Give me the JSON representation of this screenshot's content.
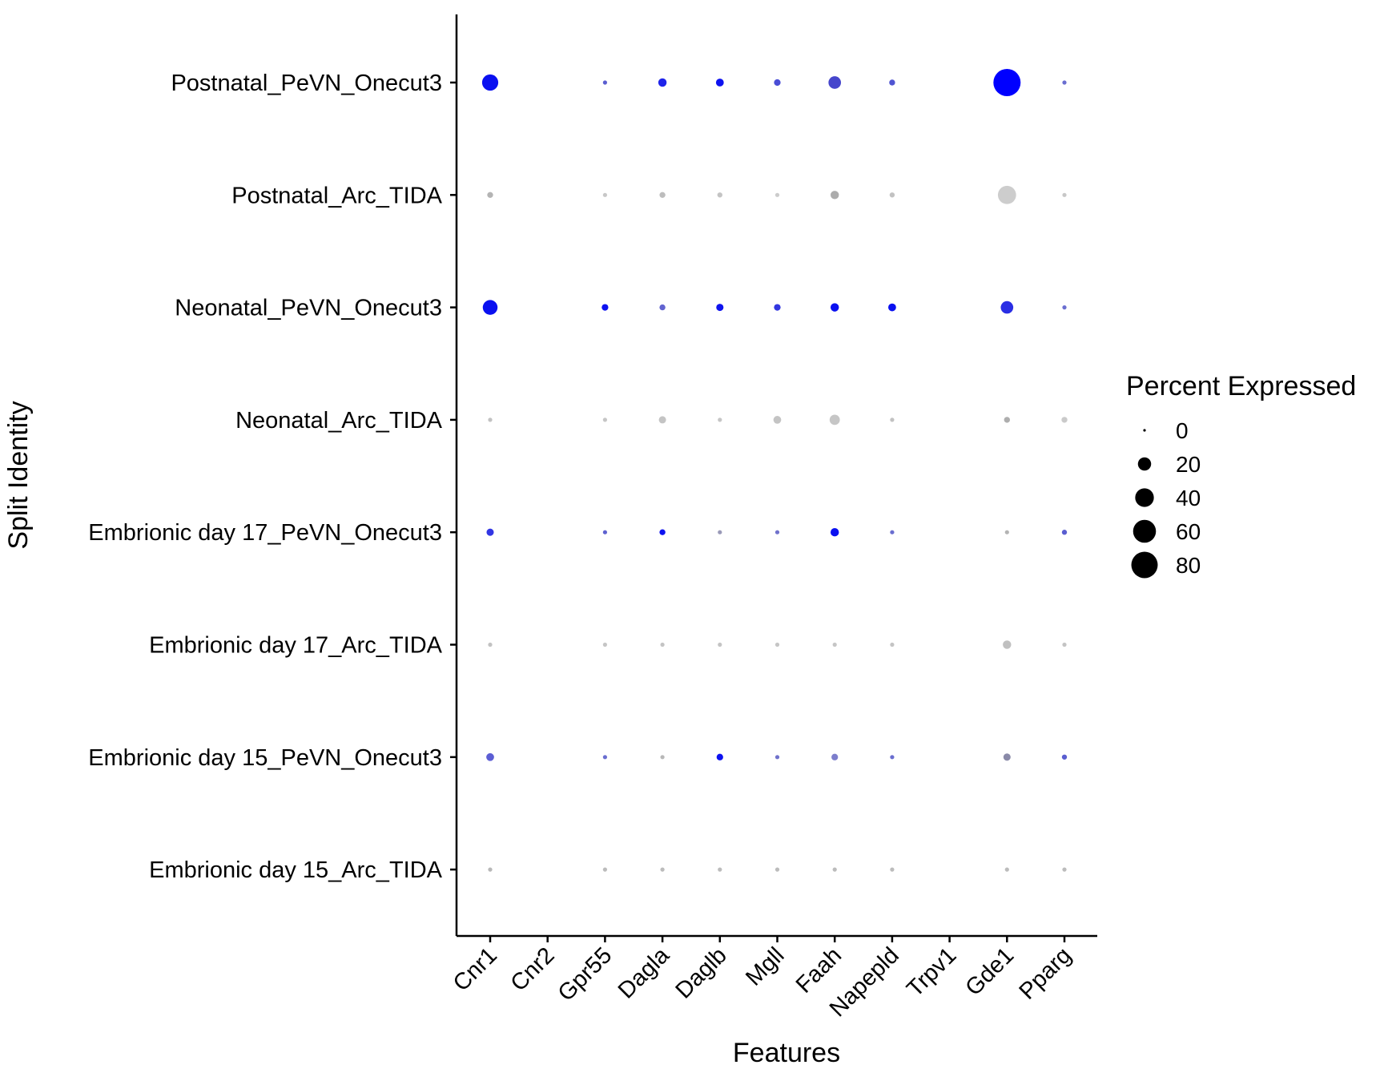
{
  "chart_data": {
    "type": "dotplot",
    "xlabel": "Features",
    "ylabel": "Split Identity",
    "features": [
      "Cnr1",
      "Cnr2",
      "Gpr55",
      "Dagla",
      "Daglb",
      "Mgll",
      "Faah",
      "Napepld",
      "Trpv1",
      "Gde1",
      "Pparg"
    ],
    "identities": [
      "Postnatal_PeVN_Onecut3",
      "Postnatal_Arc_TIDA",
      "Neonatal_PeVN_Onecut3",
      "Neonatal_Arc_TIDA",
      "Embrionic day 17_PeVN_Onecut3",
      "Embrionic day 17_Arc_TIDA",
      "Embrionic day 15_PeVN_Onecut3",
      "Embrionic day 15_Arc_TIDA"
    ],
    "percent_expressed": [
      [
        30,
        null,
        2,
        8,
        7,
        5,
        18,
        4,
        null,
        85,
        2
      ],
      [
        4,
        null,
        2,
        4,
        3,
        2,
        8,
        3,
        null,
        38,
        2
      ],
      [
        25,
        null,
        5,
        4,
        6,
        5,
        8,
        7,
        null,
        18,
        2
      ],
      [
        2,
        null,
        2,
        6,
        2,
        7,
        12,
        2,
        null,
        4,
        4
      ],
      [
        6,
        null,
        2,
        4,
        2,
        2,
        8,
        2,
        null,
        2,
        3
      ],
      [
        2,
        null,
        2,
        2,
        2,
        2,
        2,
        2,
        null,
        8,
        2
      ],
      [
        7,
        null,
        2,
        2,
        5,
        2,
        5,
        2,
        null,
        6,
        3
      ],
      [
        2,
        null,
        2,
        2,
        2,
        2,
        2,
        2,
        null,
        2,
        2
      ]
    ],
    "color_groups": {
      "PeVN_Onecut3": "blue scale (relative expression)",
      "Arc_TIDA": "grey scale (relative expression)"
    },
    "point_colors": [
      [
        "#0a10f0",
        null,
        "#5a5ed0",
        "#1f24ea",
        "#0d12f0",
        "#4a4ed6",
        "#4646cc",
        "#5055d2",
        null,
        "#0000ff",
        "#6a6ed0"
      ],
      [
        "#b4b4b4",
        null,
        "#c8c8c8",
        "#bdbdbd",
        "#c4c4c4",
        "#cccccc",
        "#acacac",
        "#c2c2c2",
        null,
        "#cdcdcd",
        "#c8c8c8"
      ],
      [
        "#0a10f0",
        null,
        "#0d12f0",
        "#6264d0",
        "#0f14ee",
        "#3236e0",
        "#0a10f0",
        "#0a10f0",
        null,
        "#2a2ee4",
        "#6a6ed0"
      ],
      [
        "#c2c2c2",
        null,
        "#c6c6c6",
        "#c4c4c4",
        "#c6c6c6",
        "#c4c4c4",
        "#c6c6c6",
        "#c2c2c2",
        null,
        "#aeaeae",
        "#cacaca"
      ],
      [
        "#3236e4",
        null,
        "#5e62d0",
        "#0d12f0",
        "#9a9ab8",
        "#7072cc",
        "#0a10f0",
        "#6a6ed0",
        null,
        "#b4b4b4",
        "#5a5ed0"
      ],
      [
        "#c2c2c2",
        null,
        "#c6c6c6",
        "#c4c4c4",
        "#c4c4c4",
        "#c6c6c6",
        "#c6c6c6",
        "#c4c4c4",
        null,
        "#c0c0c0",
        "#c4c4c4"
      ],
      [
        "#5c5ed4",
        null,
        "#6a6ed0",
        "#b8b8b8",
        "#0d12f0",
        "#7072cc",
        "#7c7ecc",
        "#6a6ed0",
        null,
        "#8a8aa8",
        "#5a5ed0"
      ],
      [
        "#b8b8b8",
        null,
        "#bcbcbc",
        "#bcbcbc",
        "#bcbcbc",
        "#bcbcbc",
        "#bcbcbc",
        "#bcbcbc",
        null,
        "#bcbcbc",
        "#bcbcbc"
      ]
    ],
    "legend": {
      "title": "Percent Expressed",
      "values": [
        0,
        20,
        40,
        60,
        80
      ],
      "labels": [
        "0",
        "20",
        "40",
        "60",
        "80"
      ],
      "placement": "right"
    },
    "size_range_percent": [
      0,
      85
    ]
  }
}
